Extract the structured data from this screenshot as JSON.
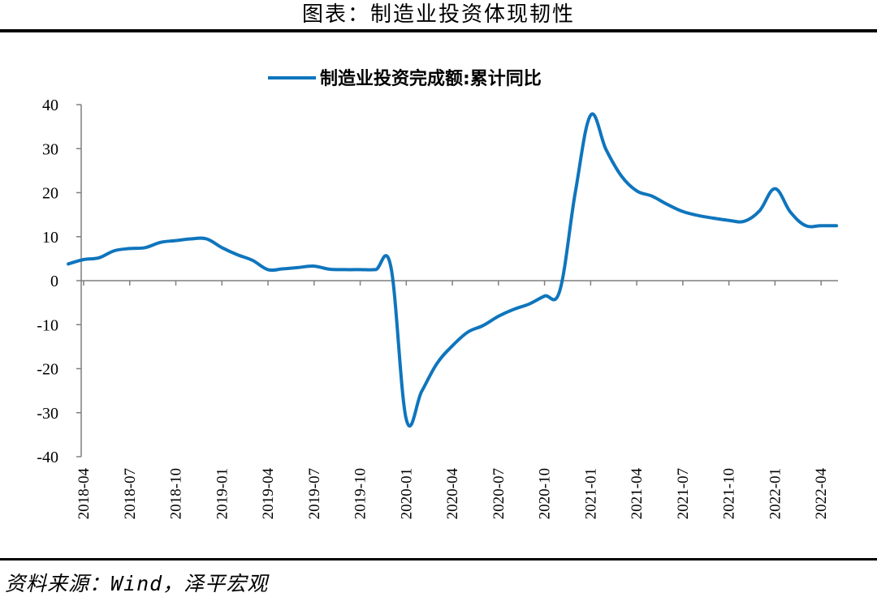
{
  "header": {
    "title": "图表：制造业投资体现韧性"
  },
  "footer": {
    "source": "资料来源：Wind，泽平宏观"
  },
  "colors": {
    "line": "#0f75bd",
    "axis": "#7f7f7f"
  },
  "chart_data": {
    "type": "line",
    "legend_position": "top-center",
    "grid": false,
    "ylim": [
      -40,
      40
    ],
    "y_ticks": [
      40,
      30,
      20,
      10,
      0,
      -10,
      -20,
      -30,
      -40
    ],
    "y_tick_labels": [
      "40",
      "30",
      "20",
      "10",
      "0",
      "-10",
      "-20",
      "-30",
      "-40"
    ],
    "x_tick_labels": [
      "2018-04",
      "2018-07",
      "2018-10",
      "2019-01",
      "2019-04",
      "2019-07",
      "2019-10",
      "2020-01",
      "2020-04",
      "2020-07",
      "2020-10",
      "2021-01",
      "2021-04",
      "2021-07",
      "2021-10",
      "2022-01",
      "2022-04"
    ],
    "series": [
      {
        "name": "制造业投资完成额:累计同比",
        "x": [
          "2018-03",
          "2018-04",
          "2018-05",
          "2018-06",
          "2018-07",
          "2018-08",
          "2018-09",
          "2018-10",
          "2018-11",
          "2018-12",
          "2019-01",
          "2019-02",
          "2019-03",
          "2019-04",
          "2019-05",
          "2019-06",
          "2019-07",
          "2019-08",
          "2019-09",
          "2019-10",
          "2019-11",
          "2019-12",
          "2020-01",
          "2020-02",
          "2020-03",
          "2020-04",
          "2020-05",
          "2020-06",
          "2020-07",
          "2020-08",
          "2020-09",
          "2020-10",
          "2020-11",
          "2020-12",
          "2021-01",
          "2021-02",
          "2021-03",
          "2021-04",
          "2021-05",
          "2021-06",
          "2021-07",
          "2021-08",
          "2021-09",
          "2021-10",
          "2021-11",
          "2021-12",
          "2022-01",
          "2022-02",
          "2022-03",
          "2022-04",
          "2022-05"
        ],
        "values": [
          3.8,
          4.8,
          5.2,
          6.8,
          7.3,
          7.5,
          8.7,
          9.1,
          9.5,
          9.5,
          7.5,
          5.9,
          4.6,
          2.5,
          2.7,
          3.0,
          3.3,
          2.6,
          2.5,
          2.5,
          2.5,
          3.1,
          -31.5,
          -25.2,
          -18.8,
          -14.8,
          -11.7,
          -10.2,
          -8.1,
          -6.5,
          -5.3,
          -3.5,
          -2.2,
          20.0,
          37.6,
          29.8,
          23.8,
          20.4,
          19.2,
          17.3,
          15.7,
          14.8,
          14.2,
          13.7,
          13.5,
          15.9,
          20.9,
          15.6,
          12.5,
          12.5,
          12.5
        ]
      }
    ]
  }
}
